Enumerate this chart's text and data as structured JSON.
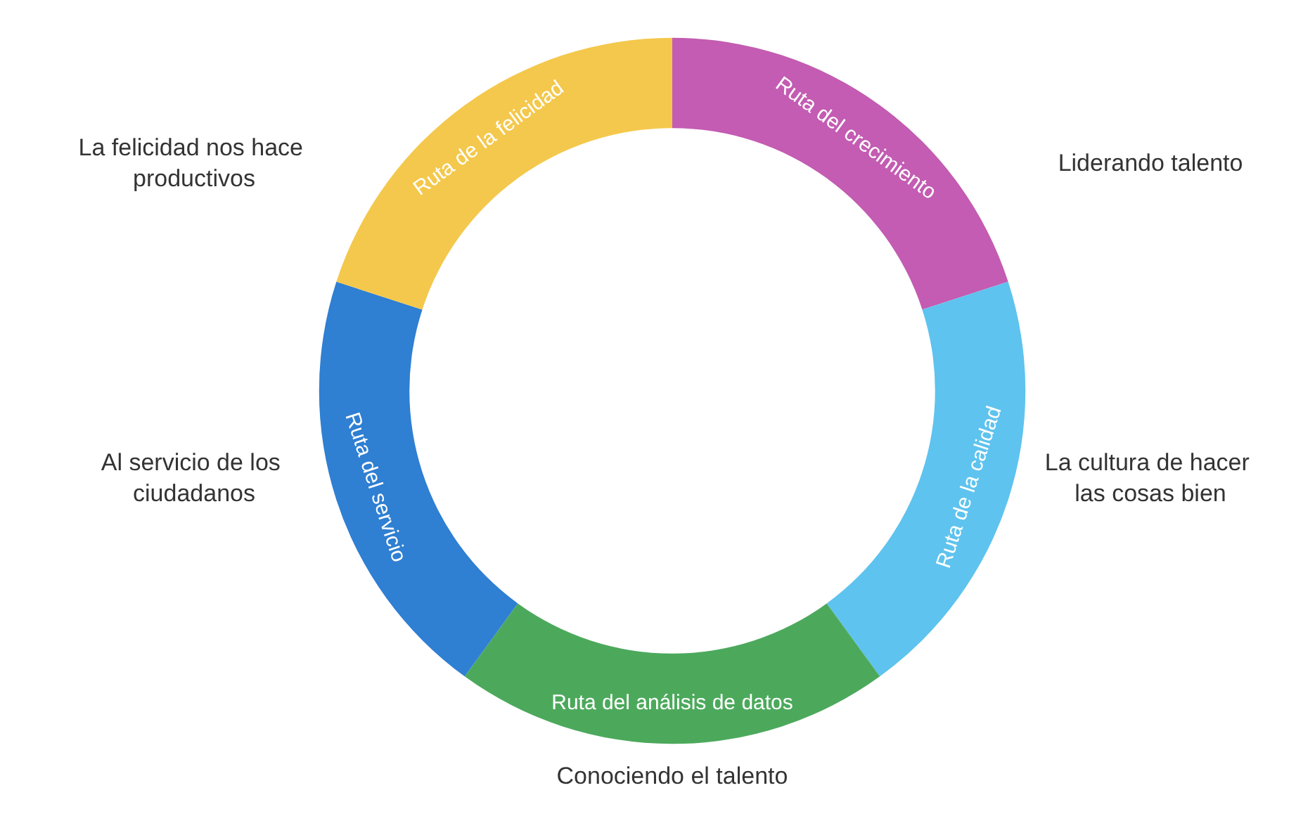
{
  "chart_data": {
    "type": "donut",
    "categories": [
      "Ruta del crecimiento",
      "Ruta de la calidad",
      "Ruta del análisis de datos",
      "Ruta del servicio",
      "Ruta de la felicidad"
    ],
    "values": [
      20,
      20,
      20,
      20,
      20
    ],
    "colors": [
      "#c35cb2",
      "#5ec3ee",
      "#4ca95c",
      "#2f7fd2",
      "#f4c84c"
    ],
    "annotations": [
      "Liderando talento",
      "La cultura de hacer las cosas bien",
      "Conociendo el talento",
      "Al servicio de los ciudadanos",
      "La felicidad nos hace productivos"
    ],
    "legend": false
  }
}
